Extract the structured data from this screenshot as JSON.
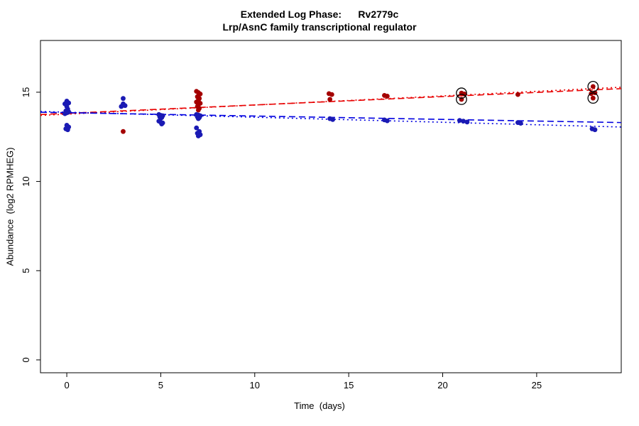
{
  "chart_data": {
    "type": "scatter",
    "title": "Extended Log Phase:      Rv2779c",
    "subtitle": "Lrp/AsnC family transcriptional regulator",
    "xlabel": "Time  (days)",
    "ylabel": "Abundance  (log2 RPMHEG)",
    "xlim": [
      -1.4,
      29.5
    ],
    "ylim": [
      -0.72,
      17.9
    ],
    "xticks": [
      0,
      5,
      10,
      15,
      20,
      25
    ],
    "yticks": [
      0,
      5,
      10,
      15
    ],
    "grid": false,
    "legend": "none",
    "colors": {
      "red_point": "#a40000",
      "blue_point": "#1a1ab4",
      "red_line": "#e80000",
      "blue_line": "#0000e0",
      "circle_outline": "#000000",
      "axis": "#000000"
    },
    "series": [
      {
        "name": "red-condition",
        "color_key": "red_point",
        "points": [
          [
            0,
            13.98
          ],
          [
            0.08,
            13.88
          ],
          [
            -0.08,
            13.82
          ],
          [
            3,
            12.8
          ],
          [
            6.9,
            15.05
          ],
          [
            7,
            14.98
          ],
          [
            7.1,
            14.9
          ],
          [
            6.95,
            14.75
          ],
          [
            7.05,
            14.65
          ],
          [
            7,
            14.55
          ],
          [
            6.9,
            14.45
          ],
          [
            7.1,
            14.38
          ],
          [
            7,
            14.3
          ],
          [
            6.95,
            14.2
          ],
          [
            7.05,
            14.1
          ],
          [
            7,
            14.0
          ],
          [
            13.95,
            14.92
          ],
          [
            14.1,
            14.87
          ],
          [
            14,
            14.6
          ],
          [
            16.9,
            14.82
          ],
          [
            17.05,
            14.78
          ],
          [
            21,
            14.95
          ],
          [
            21.15,
            14.9
          ],
          [
            21,
            14.6
          ],
          [
            24,
            14.87
          ],
          [
            28,
            15.32
          ],
          [
            28.1,
            14.97
          ],
          [
            27.9,
            14.92
          ],
          [
            28,
            14.67
          ]
        ]
      },
      {
        "name": "blue-condition",
        "color_key": "blue_point",
        "points": [
          [
            0,
            14.5
          ],
          [
            0.1,
            14.4
          ],
          [
            -0.1,
            14.35
          ],
          [
            0,
            14.2
          ],
          [
            0.05,
            14.05
          ],
          [
            -0.05,
            13.95
          ],
          [
            0.1,
            13.9
          ],
          [
            0,
            13.85
          ],
          [
            -0.1,
            13.8
          ],
          [
            0,
            13.15
          ],
          [
            0.1,
            13.05
          ],
          [
            -0.05,
            12.95
          ],
          [
            0.05,
            12.9
          ],
          [
            3,
            14.65
          ],
          [
            3,
            14.35
          ],
          [
            3.1,
            14.25
          ],
          [
            2.9,
            14.2
          ],
          [
            4.9,
            13.75
          ],
          [
            5,
            13.7
          ],
          [
            5.1,
            13.68
          ],
          [
            4.95,
            13.62
          ],
          [
            5.05,
            13.58
          ],
          [
            5,
            13.55
          ],
          [
            4.9,
            13.38
          ],
          [
            5,
            13.32
          ],
          [
            5.1,
            13.28
          ],
          [
            5.05,
            13.22
          ],
          [
            6.9,
            13.75
          ],
          [
            7,
            13.72
          ],
          [
            7.1,
            13.68
          ],
          [
            6.95,
            13.62
          ],
          [
            7.05,
            13.58
          ],
          [
            7,
            13.52
          ],
          [
            6.9,
            13.0
          ],
          [
            7.05,
            12.8
          ],
          [
            6.95,
            12.7
          ],
          [
            7.1,
            12.62
          ],
          [
            7,
            12.55
          ],
          [
            14,
            13.52
          ],
          [
            14.15,
            13.47
          ],
          [
            16.9,
            13.45
          ],
          [
            17.05,
            13.4
          ],
          [
            20.9,
            13.42
          ],
          [
            21.1,
            13.38
          ],
          [
            21.3,
            13.33
          ],
          [
            24,
            13.3
          ],
          [
            24.15,
            13.26
          ],
          [
            27.95,
            12.95
          ],
          [
            28.1,
            12.9
          ]
        ]
      }
    ],
    "highlighted_points": [
      [
        21,
        14.95
      ],
      [
        21,
        14.6
      ],
      [
        28,
        15.32
      ],
      [
        28,
        14.67
      ]
    ],
    "trend_lines": [
      {
        "name": "red-fit-1",
        "color_key": "red_line",
        "x1": -1.4,
        "y1": 13.75,
        "x2": 29.5,
        "y2": 15.2,
        "dash": "9,5"
      },
      {
        "name": "red-fit-2",
        "color_key": "red_line",
        "x1": -1.4,
        "y1": 13.7,
        "x2": 29.5,
        "y2": 15.28,
        "dash": "2,4"
      },
      {
        "name": "blue-fit-1",
        "color_key": "blue_line",
        "x1": -1.4,
        "y1": 13.88,
        "x2": 29.5,
        "y2": 13.3,
        "dash": "9,5"
      },
      {
        "name": "blue-fit-2",
        "color_key": "blue_line",
        "x1": -1.4,
        "y1": 13.92,
        "x2": 29.5,
        "y2": 13.05,
        "dash": "2,4"
      }
    ]
  }
}
